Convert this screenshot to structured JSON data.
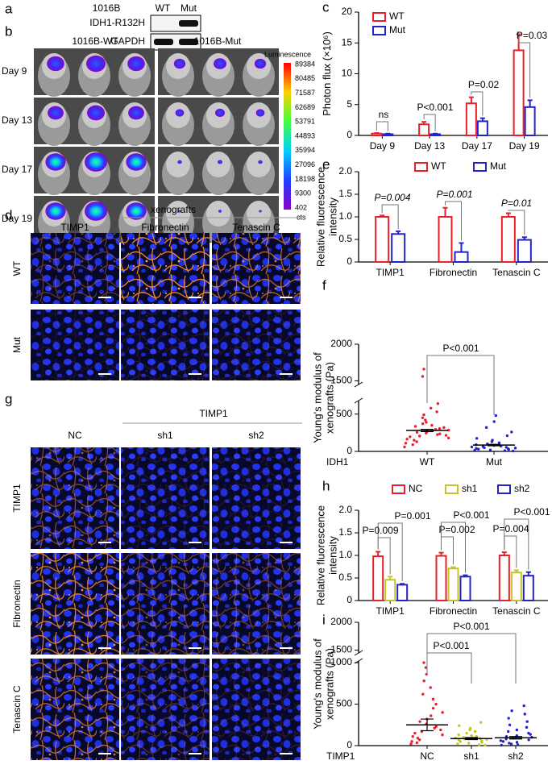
{
  "blot": {
    "panel": "a",
    "cell_line": "1016B",
    "lanes": [
      "WT",
      "Mut"
    ],
    "rows": [
      "IDH1-R132H",
      "GAPDH"
    ]
  },
  "imaging": {
    "panel": "b",
    "groups": [
      "1016B-WT",
      "1016B-Mut"
    ],
    "days": [
      "Day 9",
      "Day 13",
      "Day 17",
      "Day 19"
    ],
    "colorbar": {
      "title": "Luminescence",
      "ticks": [
        89384,
        80485,
        71587,
        62689,
        53791,
        44893,
        35994,
        27096,
        18198,
        9300,
        402
      ],
      "unit": "cts"
    }
  },
  "staining_d": {
    "panel": "d",
    "heading": "xenografts",
    "columns": [
      "TIMP1",
      "Fibronectin",
      "Tenascin  C"
    ],
    "rows": [
      "WT",
      "Mut"
    ]
  },
  "staining_g": {
    "panel": "g",
    "heading": "TIMP1",
    "columns": [
      "NC",
      "sh1",
      "sh2"
    ],
    "rows": [
      "TIMP1",
      "Fibronectin",
      "Tenascin C"
    ]
  },
  "chart_data": [
    {
      "panel": "c",
      "type": "bar",
      "ylabel": [
        "Photon flux (×10⁶)"
      ],
      "categories": [
        "Day 9",
        "Day 13",
        "Day 17",
        "Day 19"
      ],
      "series": [
        {
          "name": "WT",
          "color": "#e8202a",
          "values": [
            0.3,
            1.8,
            5.2,
            13.8
          ],
          "errors": [
            0.1,
            0.4,
            1.0,
            2.6
          ]
        },
        {
          "name": "Mut",
          "color": "#2323cc",
          "values": [
            0.2,
            0.2,
            2.3,
            4.6
          ],
          "errors": [
            0.1,
            0.1,
            0.5,
            1.1
          ]
        }
      ],
      "ylim": [
        0,
        20
      ],
      "yticks": [
        0,
        5,
        10,
        15,
        20
      ],
      "annotations": [
        "ns",
        "P<0.001",
        "P=0.02",
        "P=0.03"
      ]
    },
    {
      "panel": "e",
      "type": "bar",
      "ylabel": [
        "Relative fluorescence",
        "intensity"
      ],
      "categories": [
        "TIMP1",
        "Fibronectin",
        "Tenascin C"
      ],
      "series": [
        {
          "name": "WT",
          "color": "#e8202a",
          "values": [
            1.0,
            1.0,
            1.0
          ],
          "errors": [
            0.03,
            0.2,
            0.08
          ]
        },
        {
          "name": "Mut",
          "color": "#2323cc",
          "values": [
            0.62,
            0.22,
            0.49
          ],
          "errors": [
            0.06,
            0.2,
            0.06
          ]
        }
      ],
      "ylim": [
        0,
        2
      ],
      "yticks": [
        0,
        0.5,
        {
          "value": 1,
          "label": "1.0"
        },
        1.5,
        {
          "value": 2,
          "label": "2.0"
        }
      ],
      "annotations": [
        "P=0.004",
        "P=0.001",
        "P=0.01"
      ]
    },
    {
      "panel": "f",
      "type": "strip",
      "ylabel": [
        "Young's modulus of",
        "xenografts (Pa)"
      ],
      "group_label": "IDH1",
      "categories": [
        "WT",
        "Mut"
      ],
      "colors": [
        "#e8202a",
        "#2323cc"
      ],
      "values": [
        [
          60,
          90,
          110,
          130,
          150,
          165,
          180,
          195,
          205,
          215,
          225,
          235,
          245,
          255,
          265,
          275,
          285,
          295,
          305,
          320,
          335,
          350,
          370,
          390,
          420,
          450,
          490,
          530,
          580,
          640,
          1560,
          1660
        ],
        [
          5,
          10,
          15,
          20,
          25,
          30,
          35,
          40,
          45,
          50,
          55,
          60,
          65,
          70,
          80,
          90,
          100,
          115,
          130,
          150,
          175,
          210,
          260,
          320,
          400,
          480
        ]
      ],
      "means": [
        280,
        85
      ],
      "sems": [
        15,
        10
      ],
      "ylim": [
        0,
        680
      ],
      "yticks": [
        0,
        500
      ],
      "ylim_upper": [
        1450,
        2000
      ],
      "yticks_upper": [
        1500,
        2000
      ],
      "annotations": [
        "P<0.001"
      ]
    },
    {
      "panel": "h",
      "type": "bar",
      "ylabel": [
        "Relative fluorescence",
        "intensity"
      ],
      "categories": [
        "TIMP1",
        "Fibronectin",
        "Tenascin C"
      ],
      "series": [
        {
          "name": "NC",
          "color": "#e8202a",
          "values": [
            0.98,
            0.99,
            1.0
          ],
          "errors": [
            0.1,
            0.07,
            0.07
          ]
        },
        {
          "name": "sh1",
          "color": "#c4c42a",
          "values": [
            0.46,
            0.71,
            0.62
          ],
          "errors": [
            0.07,
            0.03,
            0.05
          ]
        },
        {
          "name": "sh2",
          "color": "#2323cc",
          "values": [
            0.35,
            0.53,
            0.55
          ],
          "errors": [
            0.02,
            0.03,
            0.08
          ]
        }
      ],
      "ylim": [
        0,
        2
      ],
      "yticks": [
        0,
        0.5,
        {
          "value": 1,
          "label": "1.0"
        },
        1.5,
        {
          "value": 2,
          "label": "2.0"
        }
      ],
      "annotations": [
        "P=0.001",
        "P=0.009",
        "P<0.001",
        "P=0.002",
        "P<0.001",
        "P=0.004"
      ]
    },
    {
      "panel": "i",
      "type": "strip",
      "ylabel": [
        "Young's modulus of",
        "xenografts (Pa)"
      ],
      "group_label": "TIMP1",
      "categories": [
        "NC",
        "sh1",
        "sh2"
      ],
      "colors": [
        "#e8202a",
        "#c4c42a",
        "#2323cc"
      ],
      "values": [
        [
          20,
          35,
          50,
          70,
          90,
          110,
          130,
          150,
          170,
          190,
          210,
          230,
          260,
          290,
          320,
          360,
          400,
          450,
          500,
          560,
          620,
          700,
          780,
          860,
          940,
          1000
        ],
        [
          5,
          10,
          20,
          30,
          40,
          50,
          60,
          70,
          75,
          80,
          85,
          90,
          100,
          110,
          120,
          130,
          150,
          170,
          190,
          210,
          240,
          280
        ],
        [
          5,
          10,
          20,
          30,
          40,
          50,
          60,
          70,
          80,
          90,
          100,
          110,
          120,
          135,
          150,
          170,
          190,
          220,
          250,
          290,
          330,
          380,
          420,
          480
        ]
      ],
      "means": [
        250,
        85,
        95
      ],
      "sems": [
        70,
        12,
        15
      ],
      "ylim": [
        0,
        1020
      ],
      "yticks": [
        0,
        500,
        1000
      ],
      "ylim_upper": [
        1450,
        2000
      ],
      "yticks_upper": [
        1500,
        2000
      ],
      "annotations": [
        "P<0.001",
        "P<0.001"
      ]
    }
  ]
}
